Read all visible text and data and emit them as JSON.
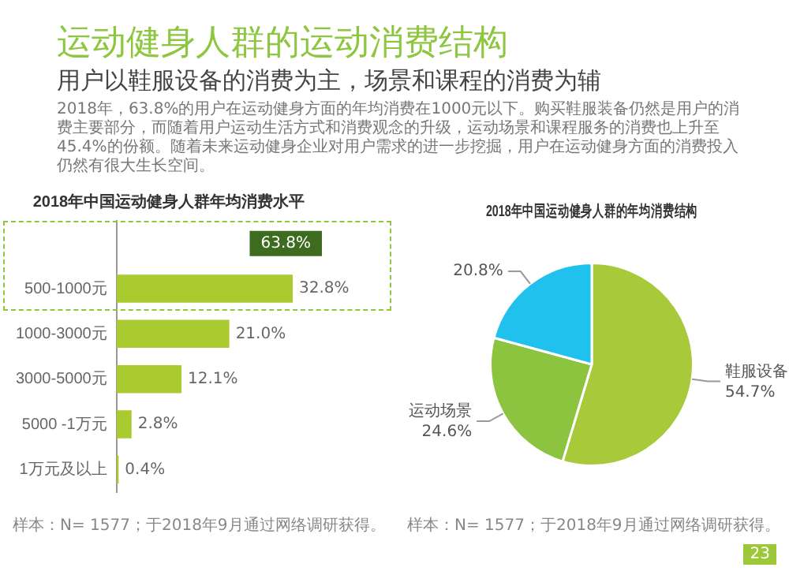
{
  "chart_data": [
    {
      "type": "other",
      "title": "运动健身人群的运动消费结构",
      "subtitle": "用户以鞋服设备的消费为主，场景和课程的消费为辅",
      "annotations": [
        "2018年，63.8%的用户在运动健身方面的年均消费在1000元以下。购买鞋服装备仍然是用户的消费主要部分，而随着用户运动生活方式和消费观念的升级，运动场景和课程服务的消费也上升至45.4%的份额。随着未来运动健身企业对用户需求的进一步挖掘，用户在运动健身方面的消费投入仍然有很大生长空间。",
        "23"
      ]
    },
    {
      "type": "bar",
      "orientation": "horizontal",
      "title": "2018年中国运动健身人群年均消费水平",
      "categories": [
        null,
        "500-1000元",
        "1000-3000元",
        "3000-5000元",
        "5000 -1万元",
        "1万元及以上"
      ],
      "values": [
        null,
        32.8,
        21.0,
        12.1,
        2.8,
        0.4
      ],
      "color": "#a9cb2f",
      "value_labels": [
        null,
        "32.8%",
        "21.0%",
        "12.1%",
        "2.8%",
        "0.4%"
      ],
      "annotations": [
        "63.8%",
        "样本：N= 1577；于2018年9月通过网络调研获得。"
      ],
      "legend": false,
      "grid": false
    },
    {
      "type": "pie",
      "title": "2018年中国运动健身人群的年均消费结构",
      "categories": [
        "鞋服设备",
        "运动场景",
        null
      ],
      "values": [
        54.7,
        24.6,
        20.8
      ],
      "colors": [
        "#a8c93a",
        "#8cc33f",
        "#20c1ec"
      ],
      "value_labels": [
        "54.7%",
        "24.6%",
        "20.8%"
      ],
      "annotations": [
        "样本：N= 1577；于2018年9月通过网络调研获得。"
      ],
      "legend": false
    }
  ]
}
